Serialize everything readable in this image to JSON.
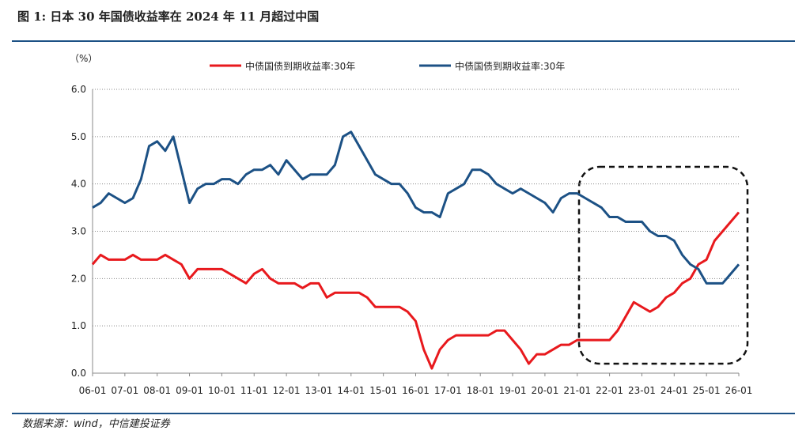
{
  "chart_data": {
    "type": "line",
    "title": "图 1: 日本 30 年国债收益率在 2024 年 11 月超过中国",
    "y_unit": "（%）",
    "source": "数据来源：wind，中信建投证券",
    "x": [
      "06-01",
      "06-04",
      "06-07",
      "06-10",
      "07-01",
      "07-04",
      "07-07",
      "07-10",
      "08-01",
      "08-04",
      "08-07",
      "08-10",
      "09-01",
      "09-04",
      "09-07",
      "09-10",
      "10-01",
      "10-04",
      "10-07",
      "10-10",
      "11-01",
      "11-04",
      "11-07",
      "11-10",
      "12-01",
      "12-04",
      "12-07",
      "12-10",
      "13-01",
      "13-04",
      "13-07",
      "13-10",
      "14-01",
      "14-04",
      "14-07",
      "14-10",
      "15-01",
      "15-04",
      "15-07",
      "15-10",
      "16-01",
      "16-04",
      "16-07",
      "16-10",
      "17-01",
      "17-04",
      "17-07",
      "17-10",
      "18-01",
      "18-04",
      "18-07",
      "18-10",
      "19-01",
      "19-04",
      "19-07",
      "19-10",
      "20-01",
      "20-04",
      "20-07",
      "20-10",
      "21-01",
      "21-04",
      "21-07",
      "21-10",
      "22-01",
      "22-04",
      "22-07",
      "22-10",
      "23-01",
      "23-04",
      "23-07",
      "23-10",
      "24-01",
      "24-04",
      "24-07",
      "24-10",
      "25-01",
      "25-04",
      "25-07",
      "25-10",
      "26-01"
    ],
    "xticks": [
      "06-01",
      "07-01",
      "08-01",
      "09-01",
      "10-01",
      "11-01",
      "12-01",
      "13-01",
      "14-01",
      "15-01",
      "16-01",
      "17-01",
      "18-01",
      "19-01",
      "20-01",
      "21-01",
      "22-01",
      "23-01",
      "24-01",
      "25-01",
      "26-01"
    ],
    "series": [
      {
        "name": "中债国债到期收益率:30年",
        "color": "#e8191d",
        "values": [
          2.3,
          2.5,
          2.4,
          2.4,
          2.4,
          2.5,
          2.4,
          2.4,
          2.4,
          2.5,
          2.4,
          2.3,
          2.0,
          2.2,
          2.2,
          2.2,
          2.2,
          2.1,
          2.0,
          1.9,
          2.1,
          2.2,
          2.0,
          1.9,
          1.9,
          1.9,
          1.8,
          1.9,
          1.9,
          1.6,
          1.7,
          1.7,
          1.7,
          1.7,
          1.6,
          1.4,
          1.4,
          1.4,
          1.4,
          1.3,
          1.1,
          0.5,
          0.1,
          0.5,
          0.7,
          0.8,
          0.8,
          0.8,
          0.8,
          0.8,
          0.9,
          0.9,
          0.7,
          0.5,
          0.2,
          0.4,
          0.4,
          0.5,
          0.6,
          0.6,
          0.7,
          0.7,
          0.7,
          0.7,
          0.7,
          0.9,
          1.2,
          1.5,
          1.4,
          1.3,
          1.4,
          1.6,
          1.7,
          1.9,
          2.0,
          2.3,
          2.4,
          2.8,
          3.0,
          3.2,
          3.4
        ]
      },
      {
        "name": "中债国债到期收益率:30年",
        "color": "#1c5185",
        "values": [
          3.5,
          3.6,
          3.8,
          3.7,
          3.6,
          3.7,
          4.1,
          4.8,
          4.9,
          4.7,
          5.0,
          4.3,
          3.6,
          3.9,
          4.0,
          4.0,
          4.1,
          4.1,
          4.0,
          4.2,
          4.3,
          4.3,
          4.4,
          4.2,
          4.5,
          4.3,
          4.1,
          4.2,
          4.2,
          4.2,
          4.4,
          5.0,
          5.1,
          4.8,
          4.5,
          4.2,
          4.1,
          4.0,
          4.0,
          3.8,
          3.5,
          3.4,
          3.4,
          3.3,
          3.8,
          3.9,
          4.0,
          4.3,
          4.3,
          4.2,
          4.0,
          3.9,
          3.8,
          3.9,
          3.8,
          3.7,
          3.6,
          3.4,
          3.7,
          3.8,
          3.8,
          3.7,
          3.6,
          3.5,
          3.3,
          3.3,
          3.2,
          3.2,
          3.2,
          3.0,
          2.9,
          2.9,
          2.8,
          2.5,
          2.3,
          2.2,
          1.9,
          1.9,
          1.9,
          2.1,
          2.3
        ]
      }
    ],
    "ylim": [
      0,
      6
    ],
    "yticks": [
      {
        "value": 0,
        "label": "0.0"
      },
      {
        "value": 1,
        "label": "1.0"
      },
      {
        "value": 2,
        "label": "2.0"
      },
      {
        "value": 3,
        "label": "3.0"
      },
      {
        "value": 4,
        "label": "4.0"
      },
      {
        "value": 5,
        "label": "5.0"
      },
      {
        "value": 6,
        "label": "6.0"
      }
    ],
    "grid": true
  }
}
